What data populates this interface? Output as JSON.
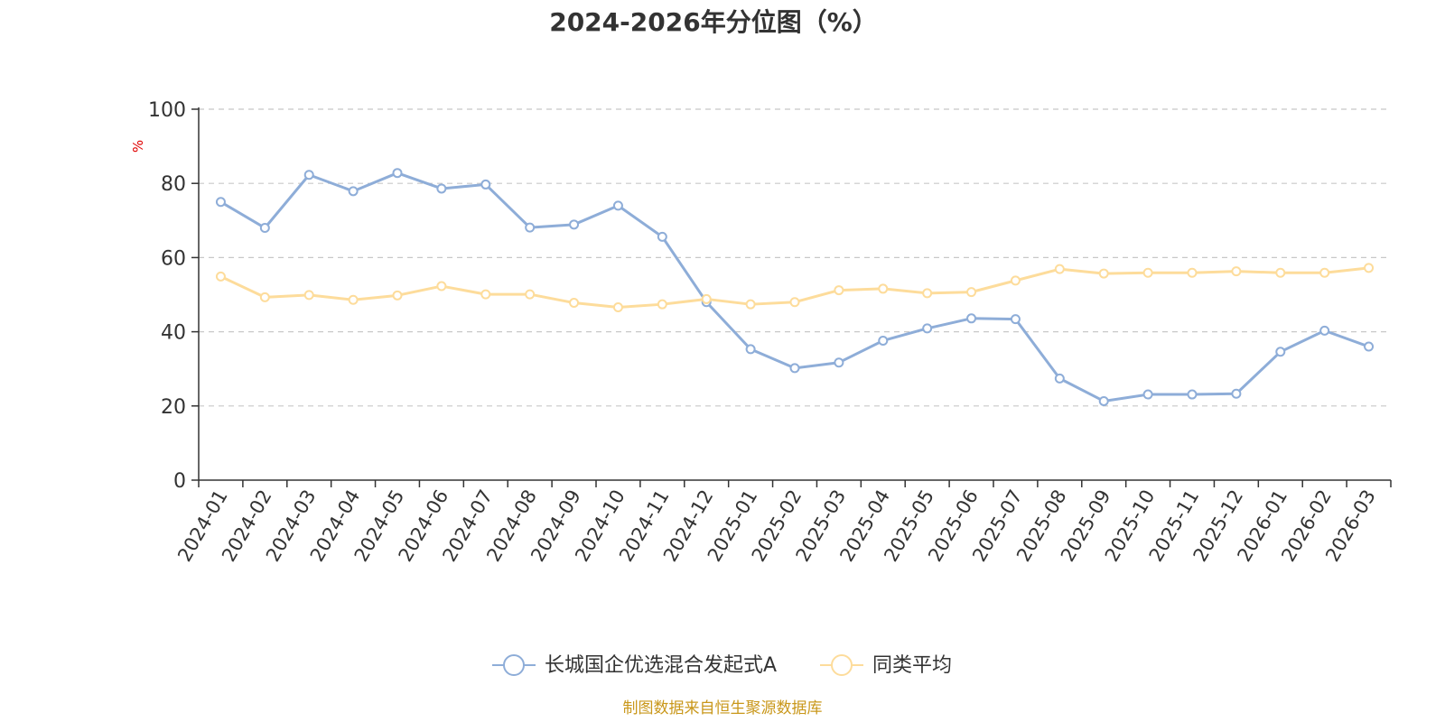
{
  "chart_data": {
    "type": "line",
    "title": "2024-2026年分位图（%）",
    "ylabel": "%",
    "xlabel": "",
    "ylim": [
      0,
      100
    ],
    "yticks": [
      0,
      20,
      40,
      60,
      80,
      100
    ],
    "grid": true,
    "legend_position": "bottom-center",
    "categories": [
      "2024-01",
      "2024-02",
      "2024-03",
      "2024-04",
      "2024-05",
      "2024-06",
      "2024-07",
      "2024-08",
      "2024-09",
      "2024-10",
      "2024-11",
      "2024-12",
      "2025-01",
      "2025-02",
      "2025-03",
      "2025-04",
      "2025-05",
      "2025-06",
      "2025-07",
      "2025-08",
      "2025-09",
      "2025-10",
      "2025-11",
      "2025-12",
      "2026-01",
      "2026-02",
      "2026-03"
    ],
    "series": [
      {
        "name": "长城国企优选混合发起式A",
        "color": "#8eadd8",
        "values": [
          75.0,
          68.0,
          82.3,
          77.9,
          82.8,
          78.6,
          79.7,
          68.1,
          68.9,
          74.0,
          65.6,
          48.0,
          35.3,
          30.2,
          31.7,
          37.6,
          40.9,
          43.6,
          43.4,
          27.4,
          21.3,
          23.1,
          23.1,
          23.3,
          34.6,
          40.3,
          36.0
        ]
      },
      {
        "name": "同类平均",
        "color": "#fddc9b",
        "values": [
          54.9,
          49.3,
          49.9,
          48.6,
          49.8,
          52.3,
          50.1,
          50.1,
          47.8,
          46.6,
          47.4,
          48.8,
          47.4,
          48.0,
          51.2,
          51.6,
          50.4,
          50.7,
          53.8,
          56.9,
          55.7,
          55.9,
          55.9,
          56.3,
          55.9,
          55.9,
          57.2
        ]
      }
    ]
  },
  "footer": {
    "source": "制图数据来自恒生聚源数据库"
  }
}
